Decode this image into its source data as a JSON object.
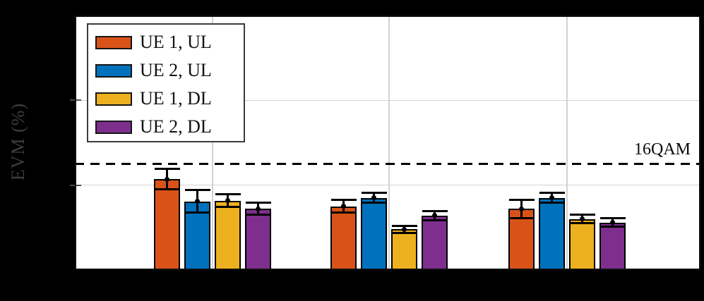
{
  "figure": {
    "background": "#000000",
    "plot_background": "#ffffff"
  },
  "chart_data": {
    "type": "bar",
    "title": "",
    "xlabel": "",
    "ylabel": "EVM (%)",
    "ylim": [
      0,
      30
    ],
    "yticks": [
      0,
      10,
      20,
      30
    ],
    "grid": true,
    "legend_position": "top-left",
    "categories": [
      "",
      "",
      ""
    ],
    "series": [
      {
        "name": "UE 1, UL",
        "color": "#D95319",
        "values": [
          10.7,
          7.5,
          7.2
        ],
        "errors": [
          1.2,
          0.75,
          1.1
        ]
      },
      {
        "name": "UE 2, UL",
        "color": "#0072BD",
        "values": [
          8.1,
          8.5,
          8.5
        ],
        "errors": [
          1.35,
          0.6,
          0.6
        ]
      },
      {
        "name": "UE 1, DL",
        "color": "#EDB120",
        "values": [
          8.15,
          4.8,
          6.0
        ],
        "errors": [
          0.75,
          0.4,
          0.5
        ]
      },
      {
        "name": "UE 2, DL",
        "color": "#7E2F8E",
        "values": [
          7.2,
          6.4,
          5.6
        ],
        "errors": [
          0.7,
          0.55,
          0.5
        ]
      }
    ],
    "threshold": {
      "value": 12.5,
      "label": "16QAM",
      "line_style": "dashed",
      "color": "#000000"
    }
  }
}
